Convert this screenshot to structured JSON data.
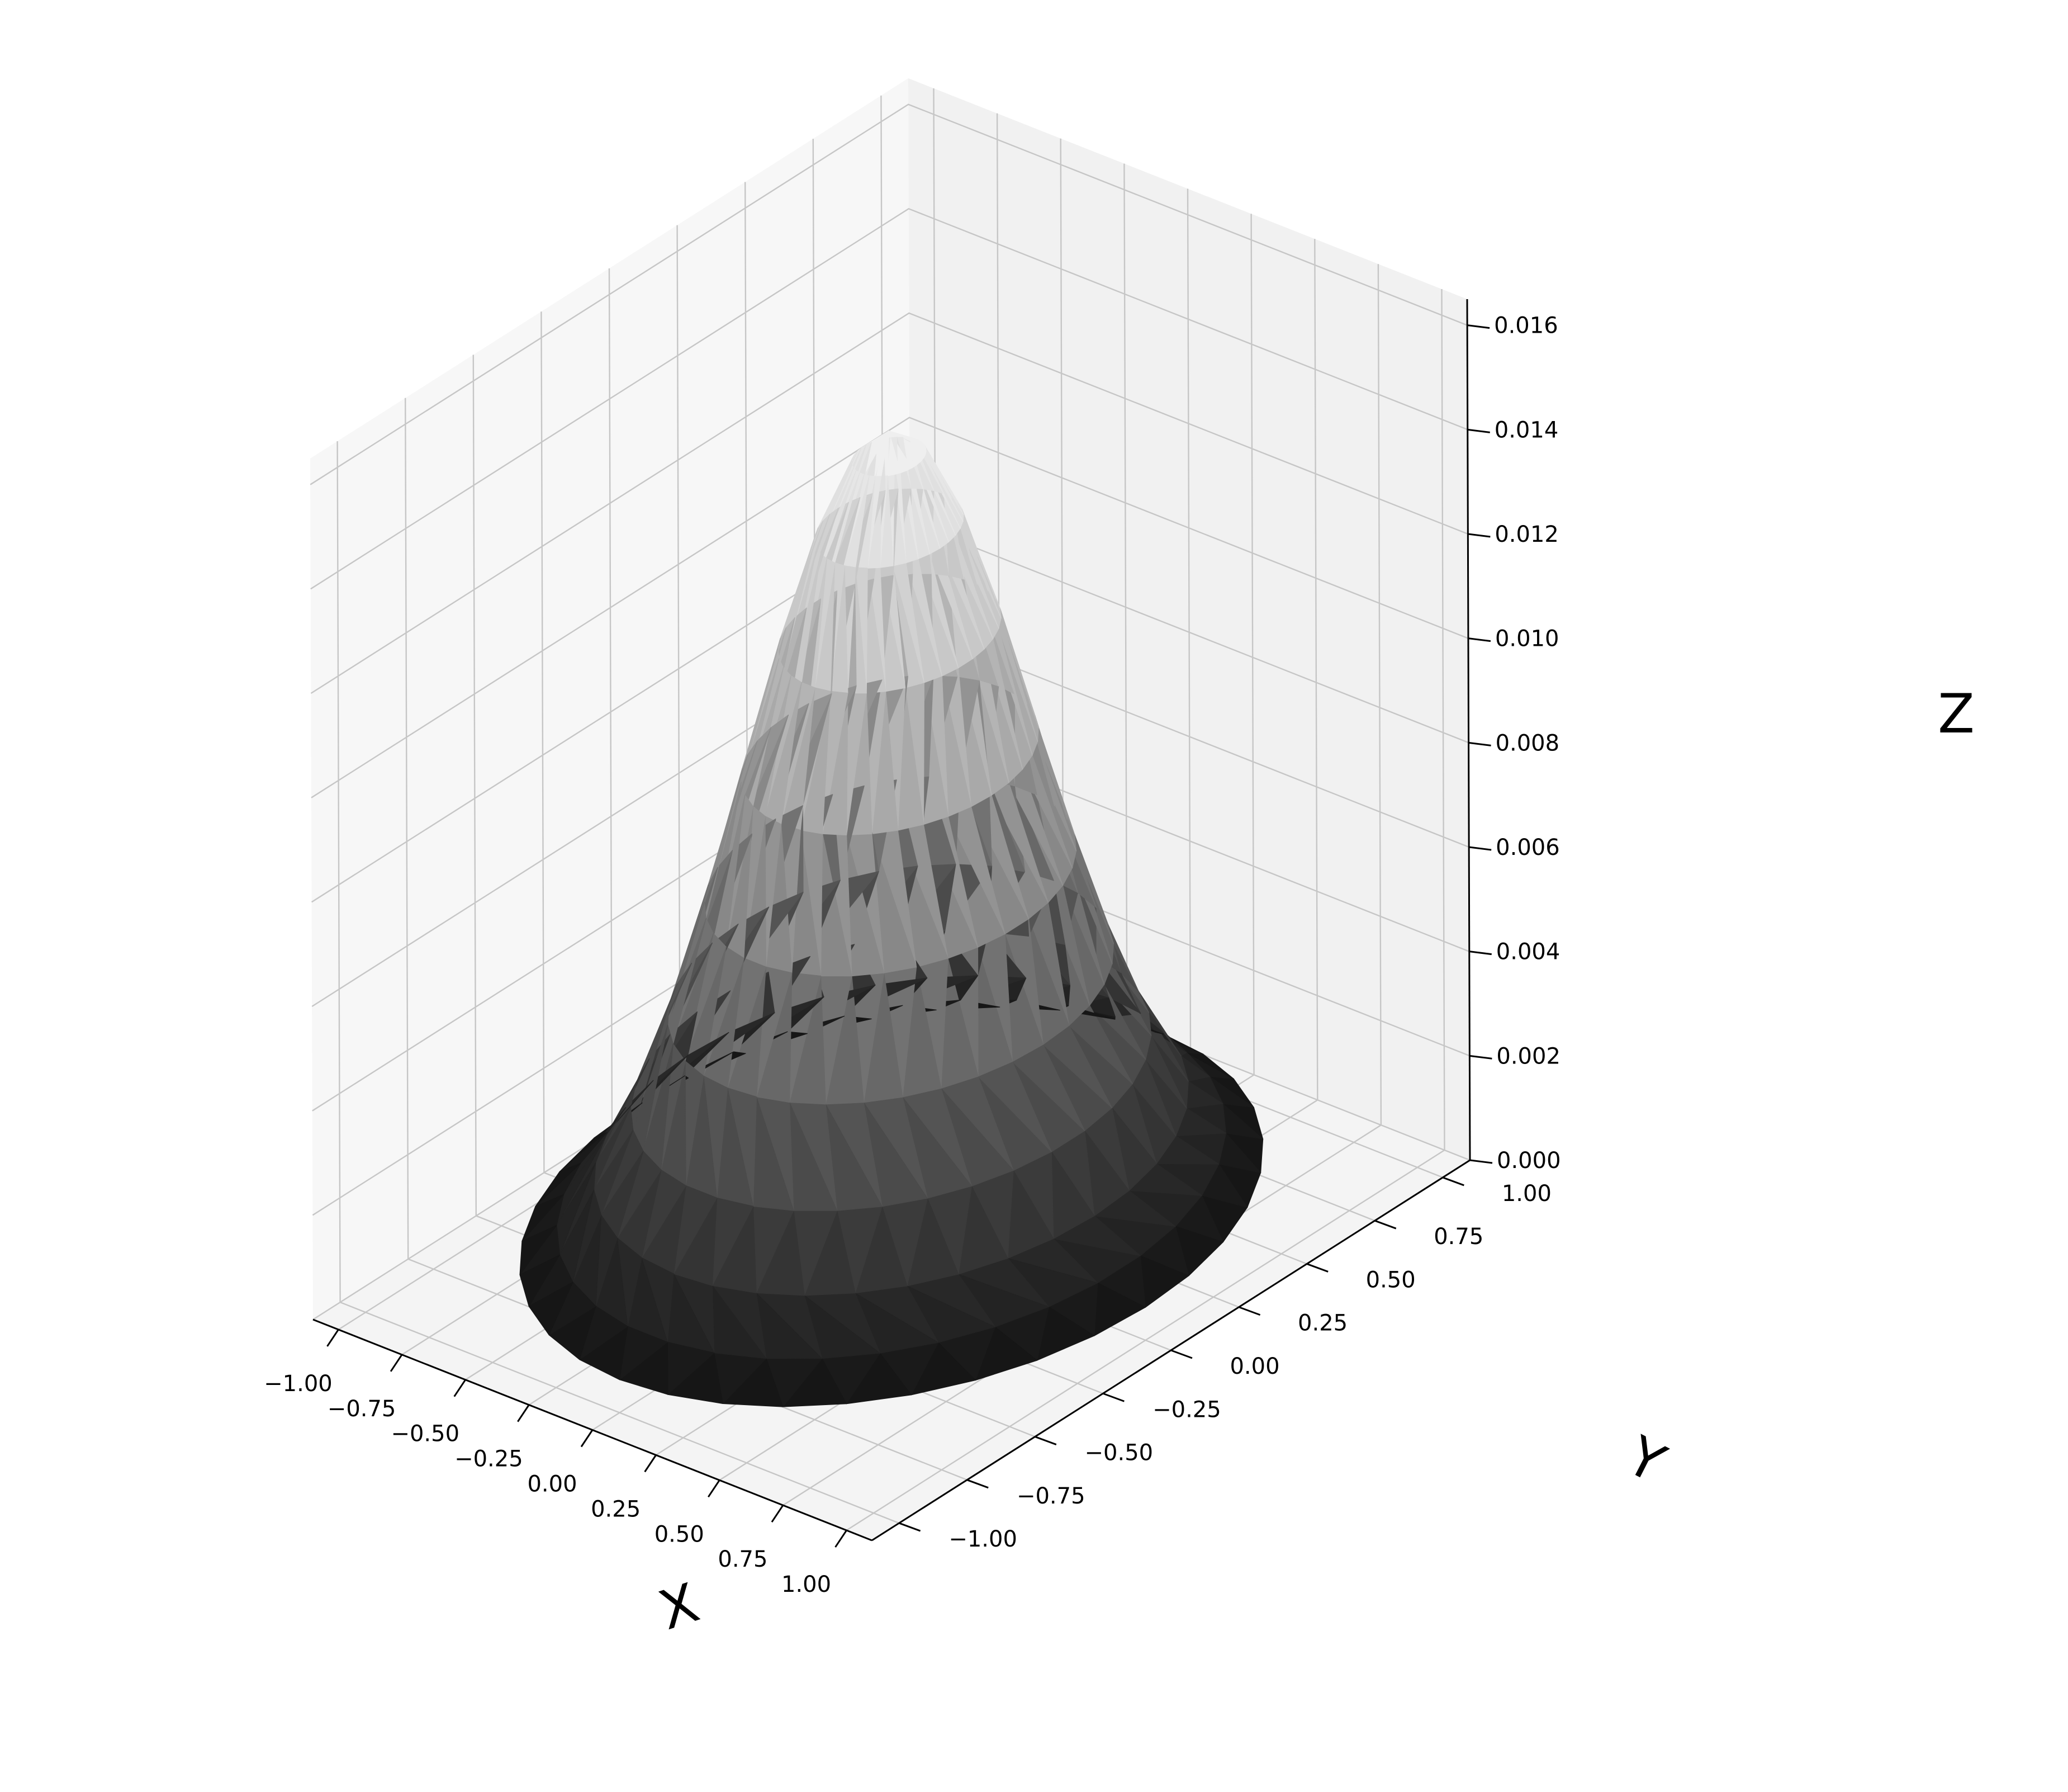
{
  "chart_data": {
    "type": "surface3d",
    "title": "",
    "xlabel": "X",
    "ylabel": "Y",
    "zlabel": "Z",
    "x_ticks": [
      -1.0,
      -0.75,
      -0.5,
      -0.25,
      0.0,
      0.25,
      0.5,
      0.75,
      1.0
    ],
    "x_tick_labels": [
      "−1.00",
      "−0.75",
      "−0.50",
      "−0.25",
      "0.00",
      "0.25",
      "0.50",
      "0.75",
      "1.00"
    ],
    "y_ticks": [
      -1.0,
      -0.75,
      -0.5,
      -0.25,
      0.0,
      0.25,
      0.5,
      0.75,
      1.0
    ],
    "y_tick_labels": [
      "−1.00",
      "−0.75",
      "−0.50",
      "−0.25",
      "0.00",
      "0.25",
      "0.50",
      "0.75",
      "1.00"
    ],
    "z_ticks": [
      0.0,
      0.002,
      0.004,
      0.006,
      0.008,
      0.01,
      0.012,
      0.014,
      0.016
    ],
    "z_tick_labels": [
      "0.000",
      "0.002",
      "0.004",
      "0.006",
      "0.008",
      "0.010",
      "0.012",
      "0.014",
      "0.016"
    ],
    "xlim": [
      -1.1,
      1.1
    ],
    "ylim": [
      -1.1,
      1.1
    ],
    "zlim": [
      0.0,
      0.0165
    ],
    "surface": {
      "domain": "unit disk",
      "function": "z = 0.0155 * exp(-3.2 * (x^2 + y^2))",
      "peak_z": 0.0155,
      "peak_at": [
        0.0,
        0.0
      ],
      "radius": 1.0,
      "radial_rings": 10,
      "angular_segments": 36
    },
    "colormap": "gray",
    "grid": true,
    "legend": "none"
  }
}
